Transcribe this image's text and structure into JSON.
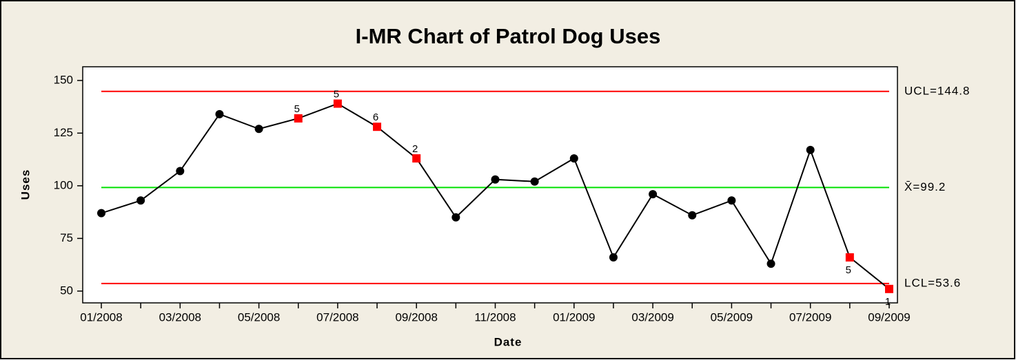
{
  "chart_data": {
    "type": "line",
    "title": "I-MR Chart of Patrol Dog Uses",
    "x_label": "Date",
    "y_label": "Uses",
    "categories": [
      "01/2008",
      null,
      "03/2008",
      null,
      "05/2008",
      null,
      "07/2008",
      null,
      "09/2008",
      null,
      "11/2008",
      null,
      "01/2009",
      null,
      "03/2009",
      null,
      "05/2009",
      null,
      "07/2009",
      null,
      "09/2009"
    ],
    "values": [
      87,
      93,
      107,
      134,
      127,
      132,
      139,
      128,
      113,
      85,
      103,
      102,
      113,
      66,
      96,
      86,
      93,
      63,
      117,
      66,
      51
    ],
    "flags": [
      null,
      null,
      null,
      null,
      null,
      "5",
      "5",
      "6",
      "2",
      null,
      null,
      null,
      null,
      null,
      null,
      null,
      null,
      null,
      null,
      "5",
      "1"
    ],
    "color": "#000000",
    "flag_color": "#ff0000",
    "control_lines": [
      {
        "label": "UCL=144.8",
        "value": 144.8,
        "color": "#ff0000"
      },
      {
        "label": "X̄=99.2",
        "value": 99.2,
        "color": "#00e000"
      },
      {
        "label": "LCL=53.6",
        "value": 53.6,
        "color": "#ff0000"
      }
    ],
    "ylim": [
      44.4,
      156.5
    ],
    "yticks": [
      50,
      75,
      100,
      125,
      150
    ]
  }
}
